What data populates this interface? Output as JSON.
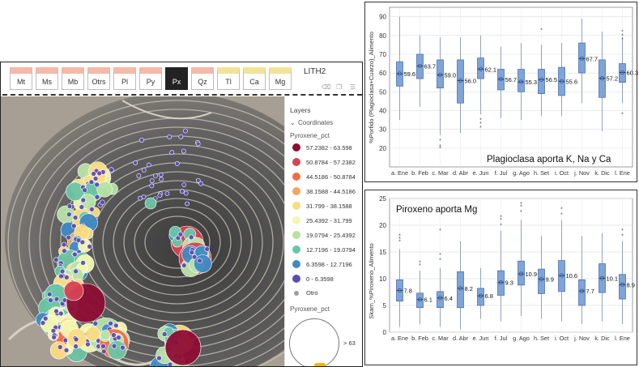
{
  "lith_tabs": [
    "Mt",
    "Ms",
    "Mb",
    "Otrs",
    "Pl",
    "Py",
    "Px",
    "Qz",
    "Tl",
    "Ca",
    "Mg"
  ],
  "lith_title": "LITH2",
  "layers": {
    "title": "Layers",
    "coordinates_label": "Coordinates",
    "field": "Pyroxene_pct",
    "legend": [
      {
        "label": "57.2382 - 63.598",
        "color": "#8e0d34"
      },
      {
        "label": "50.8784 - 57.2382",
        "color": "#d84353"
      },
      {
        "label": "44.5186 - 50.8784",
        "color": "#f26d48"
      },
      {
        "label": "38.1588 - 44.5186",
        "color": "#f7a45c"
      },
      {
        "label": "31.799 - 38.1588",
        "color": "#fadb82"
      },
      {
        "label": "25.4392 - 31.799",
        "color": "#f3f7b0"
      },
      {
        "label": "19.0794 - 25.4392",
        "color": "#b7e2a6"
      },
      {
        "label": "12.7196 - 19.0794",
        "color": "#6ac5a4"
      },
      {
        "label": "6.3598 - 12.7196",
        "color": "#3f8ac3"
      },
      {
        "label": "0 - 6.3598",
        "color": "#5c4db1"
      }
    ],
    "other_label": "Otro",
    "size_field": "Pyroxene_pct",
    "size_label": "> 63"
  },
  "chart_data": [
    {
      "type": "box",
      "ylabel": "%Porfido (Plagioclasa+Cuarzo)_Alimento",
      "categories": [
        "a. Ene",
        "b. Feb",
        "c. Mar",
        "d. Abr",
        "e. Jun",
        "f. Jul",
        "g. Ago",
        "h. Set",
        "i. Oct",
        "j. Nov",
        "k. Dic",
        "l. Ene"
      ],
      "medians": [
        59.6,
        63.7,
        59.0,
        56.0,
        62.1,
        56.7,
        55.3,
        56.5,
        55.6,
        67.7,
        57.2,
        60.3
      ],
      "median_labels": [
        "59.6",
        "63.7",
        "59.0",
        "56.0",
        "62.1",
        "56.7",
        "55.3",
        "56.5",
        "55.6",
        "67.7",
        "57.2",
        "60.3"
      ],
      "q1": [
        53,
        57,
        52,
        44,
        57,
        51,
        50,
        49,
        48,
        60,
        47,
        55
      ],
      "q3": [
        66,
        70,
        67,
        67,
        68,
        62,
        62,
        62,
        63,
        76,
        67,
        65
      ],
      "whisker_low": [
        35,
        42,
        27,
        28,
        38,
        36,
        35,
        37,
        37,
        44,
        29,
        44
      ],
      "whisker_high": [
        90,
        80,
        79,
        79,
        80,
        74,
        76,
        75,
        76,
        89,
        82,
        79
      ],
      "outliers": [
        [],
        [],
        [
          24,
          21,
          20
        ],
        [],
        [
          35,
          33,
          31
        ],
        [],
        [],
        [
          83
        ],
        [],
        [],
        [],
        [
          82,
          80,
          78,
          38
        ]
      ],
      "ylim": [
        10,
        95
      ],
      "yticks": [
        20,
        30,
        40,
        50,
        60,
        70,
        80,
        90
      ],
      "annotation": "Plagioclasa aporta K, Na y Ca"
    },
    {
      "type": "box",
      "ylabel": "Skarn_%Piroxeno_Alimento",
      "categories": [
        "a. Ene",
        "b. Feb",
        "c. Mar",
        "d. Abr",
        "e. Jun",
        "f. Jul",
        "g. Ago",
        "h. Set",
        "i. Oct",
        "j. Nov",
        "k. Dic",
        "l. Ene"
      ],
      "medians": [
        7.8,
        6.1,
        6.4,
        8.2,
        6.8,
        9.3,
        10.9,
        9.9,
        10.6,
        7.7,
        10.1,
        8.9
      ],
      "median_labels": [
        "7.8",
        "6.1",
        "6.4",
        "8.2",
        "6.8",
        "9.3",
        "10.9",
        "9.9",
        "10.6",
        "7.7",
        "10.1",
        "8.9"
      ],
      "q1": [
        5.8,
        4.6,
        4.6,
        4.6,
        5.0,
        6.9,
        8.8,
        7.2,
        7.6,
        5.0,
        7.4,
        6.2
      ],
      "q3": [
        9.8,
        7.3,
        7.6,
        11.3,
        8.2,
        11.5,
        13.3,
        11.8,
        13.4,
        9.8,
        12.8,
        10.8
      ],
      "whisker_low": [
        1.0,
        1.5,
        1.0,
        0.5,
        2.5,
        2.0,
        3.0,
        2.5,
        2.0,
        1.5,
        2.0,
        1.5
      ],
      "whisker_high": [
        15.5,
        11.5,
        12.0,
        17.0,
        12.0,
        19.0,
        21.0,
        18.0,
        21.0,
        18.0,
        18.5,
        17.0
      ],
      "outliers": [
        [
          17.0,
          17.5,
          18.0
        ],
        [
          12.5,
          13.0
        ],
        [
          13.5,
          14.5,
          19.0
        ],
        [],
        [],
        [
          20.0,
          21.0,
          21.5
        ],
        [
          22.5,
          23.5,
          24.0
        ],
        [],
        [
          22.0,
          23.0
        ],
        [],
        [],
        [
          19.0,
          18.0
        ]
      ],
      "ylim": [
        0,
        25
      ],
      "yticks": [
        0,
        5,
        10,
        15,
        20,
        25
      ],
      "annotation": "Piroxeno aporta Mg"
    }
  ]
}
